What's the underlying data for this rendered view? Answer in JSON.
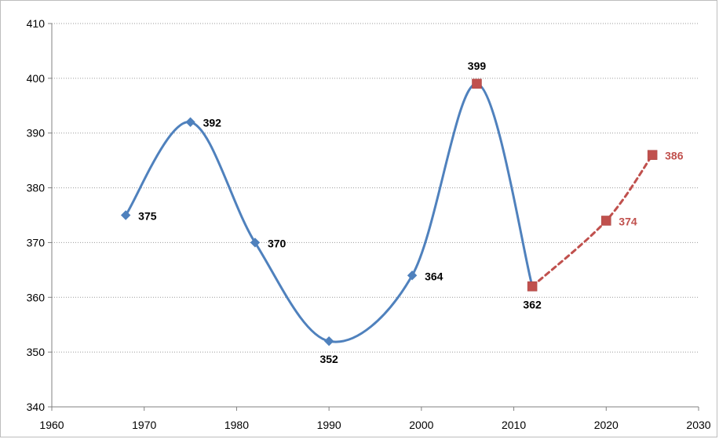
{
  "chart_data": {
    "type": "line",
    "title": "",
    "xlabel": "",
    "ylabel": "",
    "xlim": [
      1960,
      2030
    ],
    "ylim": [
      340,
      410
    ],
    "x_ticks": [
      "1960",
      "1970",
      "1980",
      "1990",
      "2000",
      "2010",
      "2020",
      "2030"
    ],
    "y_ticks": [
      "340",
      "350",
      "360",
      "370",
      "380",
      "390",
      "400",
      "410"
    ],
    "grid": "horizontal dotted",
    "legend": "none",
    "series": [
      {
        "style": "solid",
        "color": "#4F81BD",
        "points": [
          {
            "x": 1968,
            "y": 375,
            "label": "375",
            "marker": "diamond",
            "color": "#4F81BD",
            "label_pos": "right"
          },
          {
            "x": 1975,
            "y": 392,
            "label": "392",
            "marker": "diamond",
            "color": "#4F81BD",
            "label_pos": "right"
          },
          {
            "x": 1982,
            "y": 370,
            "label": "370",
            "marker": "diamond",
            "color": "#4F81BD",
            "label_pos": "right"
          },
          {
            "x": 1990,
            "y": 352,
            "label": "352",
            "marker": "diamond",
            "color": "#4F81BD",
            "label_pos": "below"
          },
          {
            "x": 1999,
            "y": 364,
            "label": "364",
            "marker": "diamond",
            "color": "#4F81BD",
            "label_pos": "right"
          },
          {
            "x": 2006,
            "y": 399,
            "label": "399",
            "marker": "square",
            "color": "#C0504D",
            "label_pos": "above"
          },
          {
            "x": 2012,
            "y": 362,
            "label": "362",
            "marker": "square",
            "color": "#C0504D",
            "label_pos": "below"
          }
        ]
      },
      {
        "style": "dashed",
        "color": "#C0504D",
        "label_color": "#C0504D",
        "points": [
          {
            "x": 2012,
            "y": 362,
            "label": "",
            "marker": "none"
          },
          {
            "x": 2020,
            "y": 374,
            "label": "374",
            "marker": "square",
            "color": "#C0504D",
            "label_pos": "right"
          },
          {
            "x": 2025,
            "y": 386,
            "label": "386",
            "marker": "square",
            "color": "#C0504D",
            "label_pos": "right"
          }
        ]
      }
    ]
  }
}
